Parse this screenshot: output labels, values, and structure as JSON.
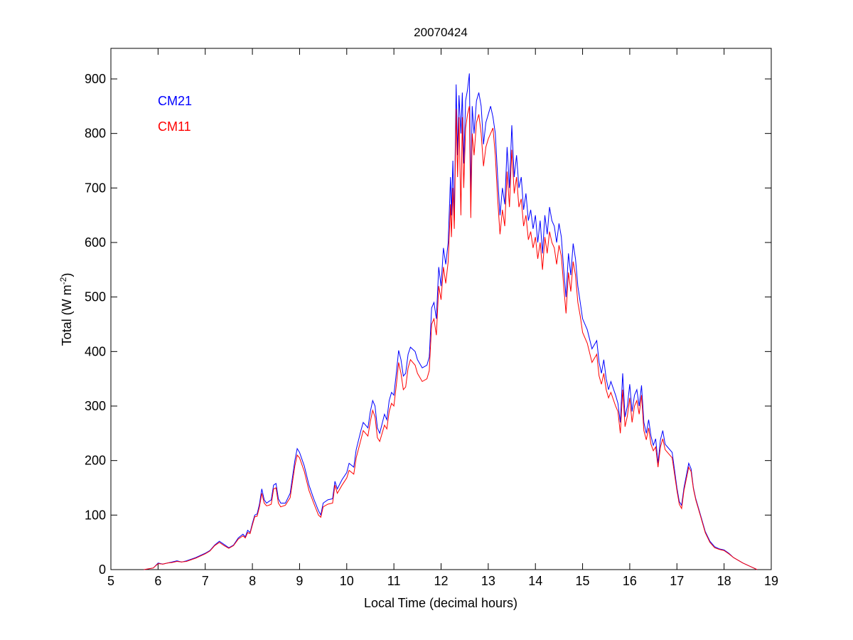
{
  "chart_data": {
    "type": "line",
    "title": "20070424",
    "xlabel": "Local Time (decimal hours)",
    "ylabel_main": "Total (W m",
    "ylabel_sup": "-2",
    "ylabel_close": ")",
    "xlim": [
      5,
      19
    ],
    "ylim": [
      0,
      950
    ],
    "xticks": [
      5,
      6,
      7,
      8,
      9,
      10,
      11,
      12,
      13,
      14,
      15,
      16,
      17,
      18,
      19
    ],
    "yticks": [
      0,
      100,
      200,
      300,
      400,
      500,
      600,
      700,
      800,
      900
    ],
    "grid": false,
    "legend_placement": "top-left",
    "x": [
      5.7,
      5.9,
      6.0,
      6.1,
      6.2,
      6.3,
      6.4,
      6.5,
      6.6,
      6.8,
      7.0,
      7.1,
      7.2,
      7.3,
      7.4,
      7.5,
      7.6,
      7.7,
      7.8,
      7.85,
      7.9,
      7.95,
      8.0,
      8.05,
      8.1,
      8.15,
      8.2,
      8.25,
      8.3,
      8.35,
      8.4,
      8.45,
      8.5,
      8.55,
      8.6,
      8.7,
      8.8,
      8.9,
      8.95,
      9.0,
      9.1,
      9.2,
      9.3,
      9.4,
      9.45,
      9.5,
      9.6,
      9.7,
      9.75,
      9.8,
      9.9,
      10.0,
      10.05,
      10.15,
      10.2,
      10.3,
      10.35,
      10.45,
      10.5,
      10.55,
      10.6,
      10.65,
      10.7,
      10.8,
      10.85,
      10.9,
      10.95,
      11.0,
      11.05,
      11.1,
      11.15,
      11.2,
      11.25,
      11.3,
      11.35,
      11.45,
      11.5,
      11.6,
      11.7,
      11.75,
      11.8,
      11.85,
      11.9,
      11.95,
      12.0,
      12.05,
      12.1,
      12.15,
      12.2,
      12.22,
      12.25,
      12.28,
      12.32,
      12.35,
      12.38,
      12.42,
      12.45,
      12.48,
      12.52,
      12.56,
      12.6,
      12.63,
      12.66,
      12.7,
      12.75,
      12.8,
      12.85,
      12.9,
      12.95,
      13.0,
      13.05,
      13.1,
      13.15,
      13.2,
      13.25,
      13.3,
      13.35,
      13.4,
      13.45,
      13.5,
      13.55,
      13.6,
      13.65,
      13.7,
      13.75,
      13.8,
      13.85,
      13.9,
      13.95,
      14.0,
      14.05,
      14.1,
      14.15,
      14.2,
      14.25,
      14.3,
      14.35,
      14.4,
      14.45,
      14.5,
      14.55,
      14.6,
      14.65,
      14.7,
      14.75,
      14.8,
      14.85,
      14.9,
      14.95,
      15.0,
      15.1,
      15.2,
      15.3,
      15.35,
      15.4,
      15.45,
      15.5,
      15.55,
      15.6,
      15.7,
      15.75,
      15.8,
      15.85,
      15.9,
      15.95,
      16.0,
      16.05,
      16.1,
      16.15,
      16.2,
      16.25,
      16.3,
      16.35,
      16.4,
      16.45,
      16.5,
      16.55,
      16.6,
      16.65,
      16.7,
      16.75,
      16.8,
      16.9,
      17.0,
      17.05,
      17.1,
      17.15,
      17.25,
      17.3,
      17.35,
      17.4,
      17.5,
      17.6,
      17.7,
      17.8,
      17.9,
      18.0,
      18.1,
      18.2,
      18.4,
      18.6,
      18.7
    ],
    "series": [
      {
        "name": "CM21",
        "color": "#0000ff",
        "values": [
          0,
          3,
          12,
          10,
          12,
          14,
          16,
          14,
          16,
          22,
          30,
          35,
          45,
          52,
          46,
          40,
          45,
          58,
          65,
          60,
          72,
          68,
          85,
          100,
          102,
          120,
          148,
          128,
          122,
          125,
          128,
          155,
          158,
          130,
          122,
          122,
          140,
          200,
          222,
          215,
          190,
          155,
          130,
          108,
          100,
          122,
          128,
          130,
          162,
          148,
          165,
          178,
          195,
          188,
          220,
          255,
          270,
          260,
          290,
          310,
          300,
          260,
          250,
          285,
          275,
          310,
          325,
          320,
          360,
          402,
          385,
          355,
          360,
          395,
          408,
          400,
          385,
          370,
          375,
          390,
          480,
          490,
          460,
          555,
          520,
          590,
          560,
          600,
          720,
          650,
          750,
          640,
          890,
          760,
          870,
          800,
          875,
          745,
          860,
          880,
          910,
          680,
          850,
          800,
          860,
          875,
          850,
          780,
          820,
          835,
          850,
          830,
          800,
          720,
          650,
          700,
          670,
          775,
          700,
          815,
          720,
          760,
          700,
          720,
          660,
          690,
          640,
          660,
          625,
          650,
          600,
          640,
          580,
          650,
          615,
          665,
          640,
          630,
          600,
          635,
          610,
          550,
          500,
          580,
          540,
          598,
          570,
          520,
          490,
          460,
          440,
          405,
          420,
          380,
          360,
          385,
          350,
          330,
          345,
          320,
          305,
          270,
          360,
          280,
          300,
          340,
          290,
          320,
          330,
          300,
          338,
          270,
          250,
          275,
          245,
          228,
          240,
          195,
          238,
          255,
          230,
          225,
          215,
          150,
          125,
          118,
          150,
          195,
          185,
          150,
          130,
          100,
          70,
          52,
          42,
          38,
          36,
          30,
          22,
          12,
          4,
          0
        ]
      },
      {
        "name": "CM11",
        "color": "#ff0000",
        "values": [
          0,
          3,
          11,
          10,
          12,
          13,
          15,
          14,
          15,
          21,
          29,
          34,
          44,
          50,
          44,
          39,
          44,
          56,
          62,
          58,
          68,
          66,
          82,
          97,
          98,
          115,
          140,
          122,
          117,
          118,
          120,
          148,
          150,
          122,
          115,
          118,
          132,
          190,
          210,
          205,
          180,
          145,
          122,
          100,
          96,
          115,
          120,
          122,
          155,
          140,
          155,
          168,
          182,
          175,
          205,
          238,
          255,
          245,
          272,
          292,
          280,
          242,
          235,
          265,
          258,
          290,
          305,
          300,
          338,
          380,
          360,
          330,
          335,
          370,
          385,
          375,
          360,
          345,
          350,
          365,
          450,
          460,
          430,
          520,
          495,
          555,
          525,
          565,
          670,
          610,
          700,
          625,
          845,
          720,
          830,
          650,
          830,
          700,
          810,
          835,
          850,
          645,
          800,
          760,
          820,
          835,
          800,
          740,
          775,
          790,
          800,
          810,
          760,
          680,
          615,
          660,
          630,
          730,
          665,
          770,
          690,
          720,
          665,
          680,
          630,
          650,
          605,
          620,
          590,
          610,
          570,
          600,
          550,
          610,
          580,
          620,
          600,
          590,
          560,
          595,
          575,
          520,
          470,
          545,
          510,
          565,
          540,
          490,
          465,
          435,
          415,
          380,
          395,
          355,
          340,
          360,
          330,
          315,
          325,
          300,
          290,
          250,
          330,
          262,
          282,
          315,
          270,
          300,
          310,
          285,
          320,
          255,
          238,
          260,
          230,
          218,
          225,
          188,
          225,
          240,
          220,
          215,
          205,
          145,
          120,
          112,
          145,
          188,
          180,
          148,
          128,
          98,
          68,
          50,
          40,
          37,
          35,
          29,
          22,
          12,
          4,
          0
        ]
      }
    ]
  }
}
